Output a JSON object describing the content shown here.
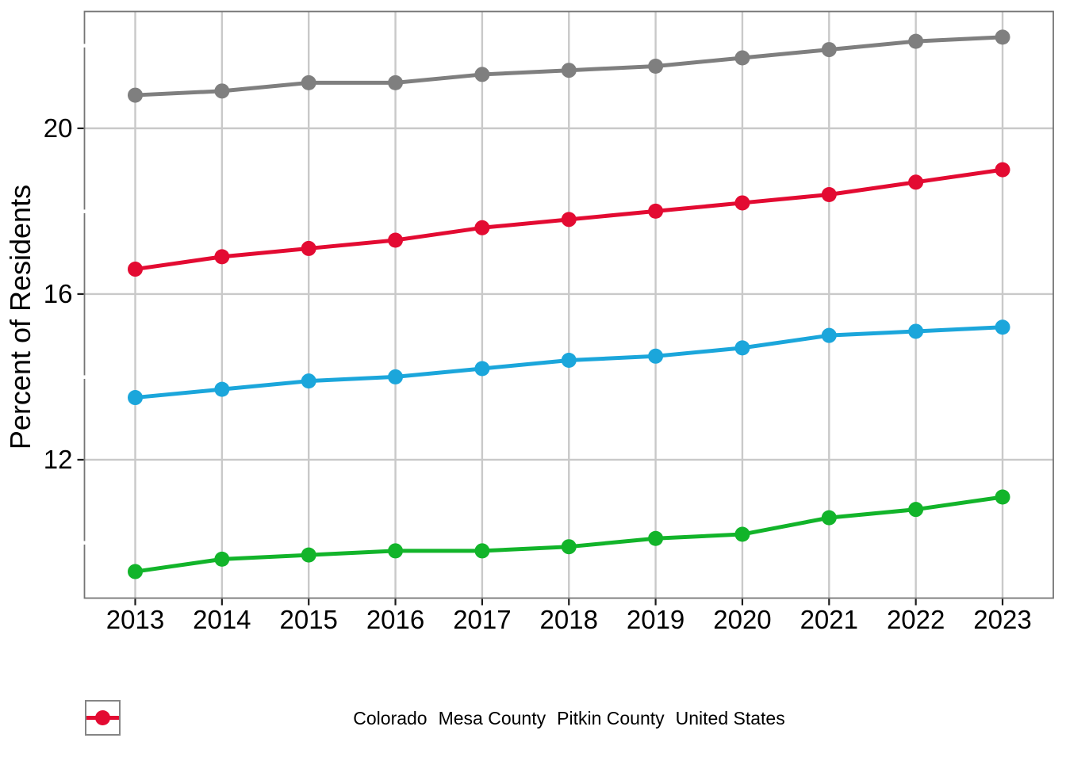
{
  "chart_data": {
    "type": "line",
    "title": "",
    "xlabel": "",
    "ylabel": "Percent of Residents",
    "x": [
      2013,
      2014,
      2015,
      2016,
      2017,
      2018,
      2019,
      2020,
      2021,
      2022,
      2023
    ],
    "series": [
      {
        "name": "Colorado",
        "color": "#7F7F7F",
        "values": [
          20.8,
          20.9,
          21.1,
          21.1,
          21.3,
          21.4,
          21.5,
          21.7,
          21.9,
          22.1,
          22.2
        ]
      },
      {
        "name": "Mesa County",
        "color": "#1BA6DB",
        "values": [
          13.5,
          13.7,
          13.9,
          14.0,
          14.2,
          14.4,
          14.5,
          14.7,
          15.0,
          15.1,
          15.2
        ]
      },
      {
        "name": "Pitkin County",
        "color": "#12B42A",
        "values": [
          9.3,
          9.6,
          9.7,
          9.8,
          9.8,
          9.9,
          10.1,
          10.2,
          10.6,
          10.8,
          11.1
        ]
      },
      {
        "name": "United States",
        "color": "#E30B32",
        "values": [
          16.6,
          16.9,
          17.1,
          17.3,
          17.6,
          17.8,
          18.0,
          18.2,
          18.4,
          18.7,
          19.0
        ]
      }
    ],
    "yticks": [
      12,
      16,
      20
    ],
    "ylim": [
      8.66,
      22.82
    ],
    "grid": true,
    "legend_position": "bottom"
  },
  "styles": {
    "grid_color": "#C9C9C9",
    "panel_border_color": "#757575",
    "tick_color": "#1A1A1A",
    "text_color": "#000000",
    "background": "#FFFFFF"
  }
}
